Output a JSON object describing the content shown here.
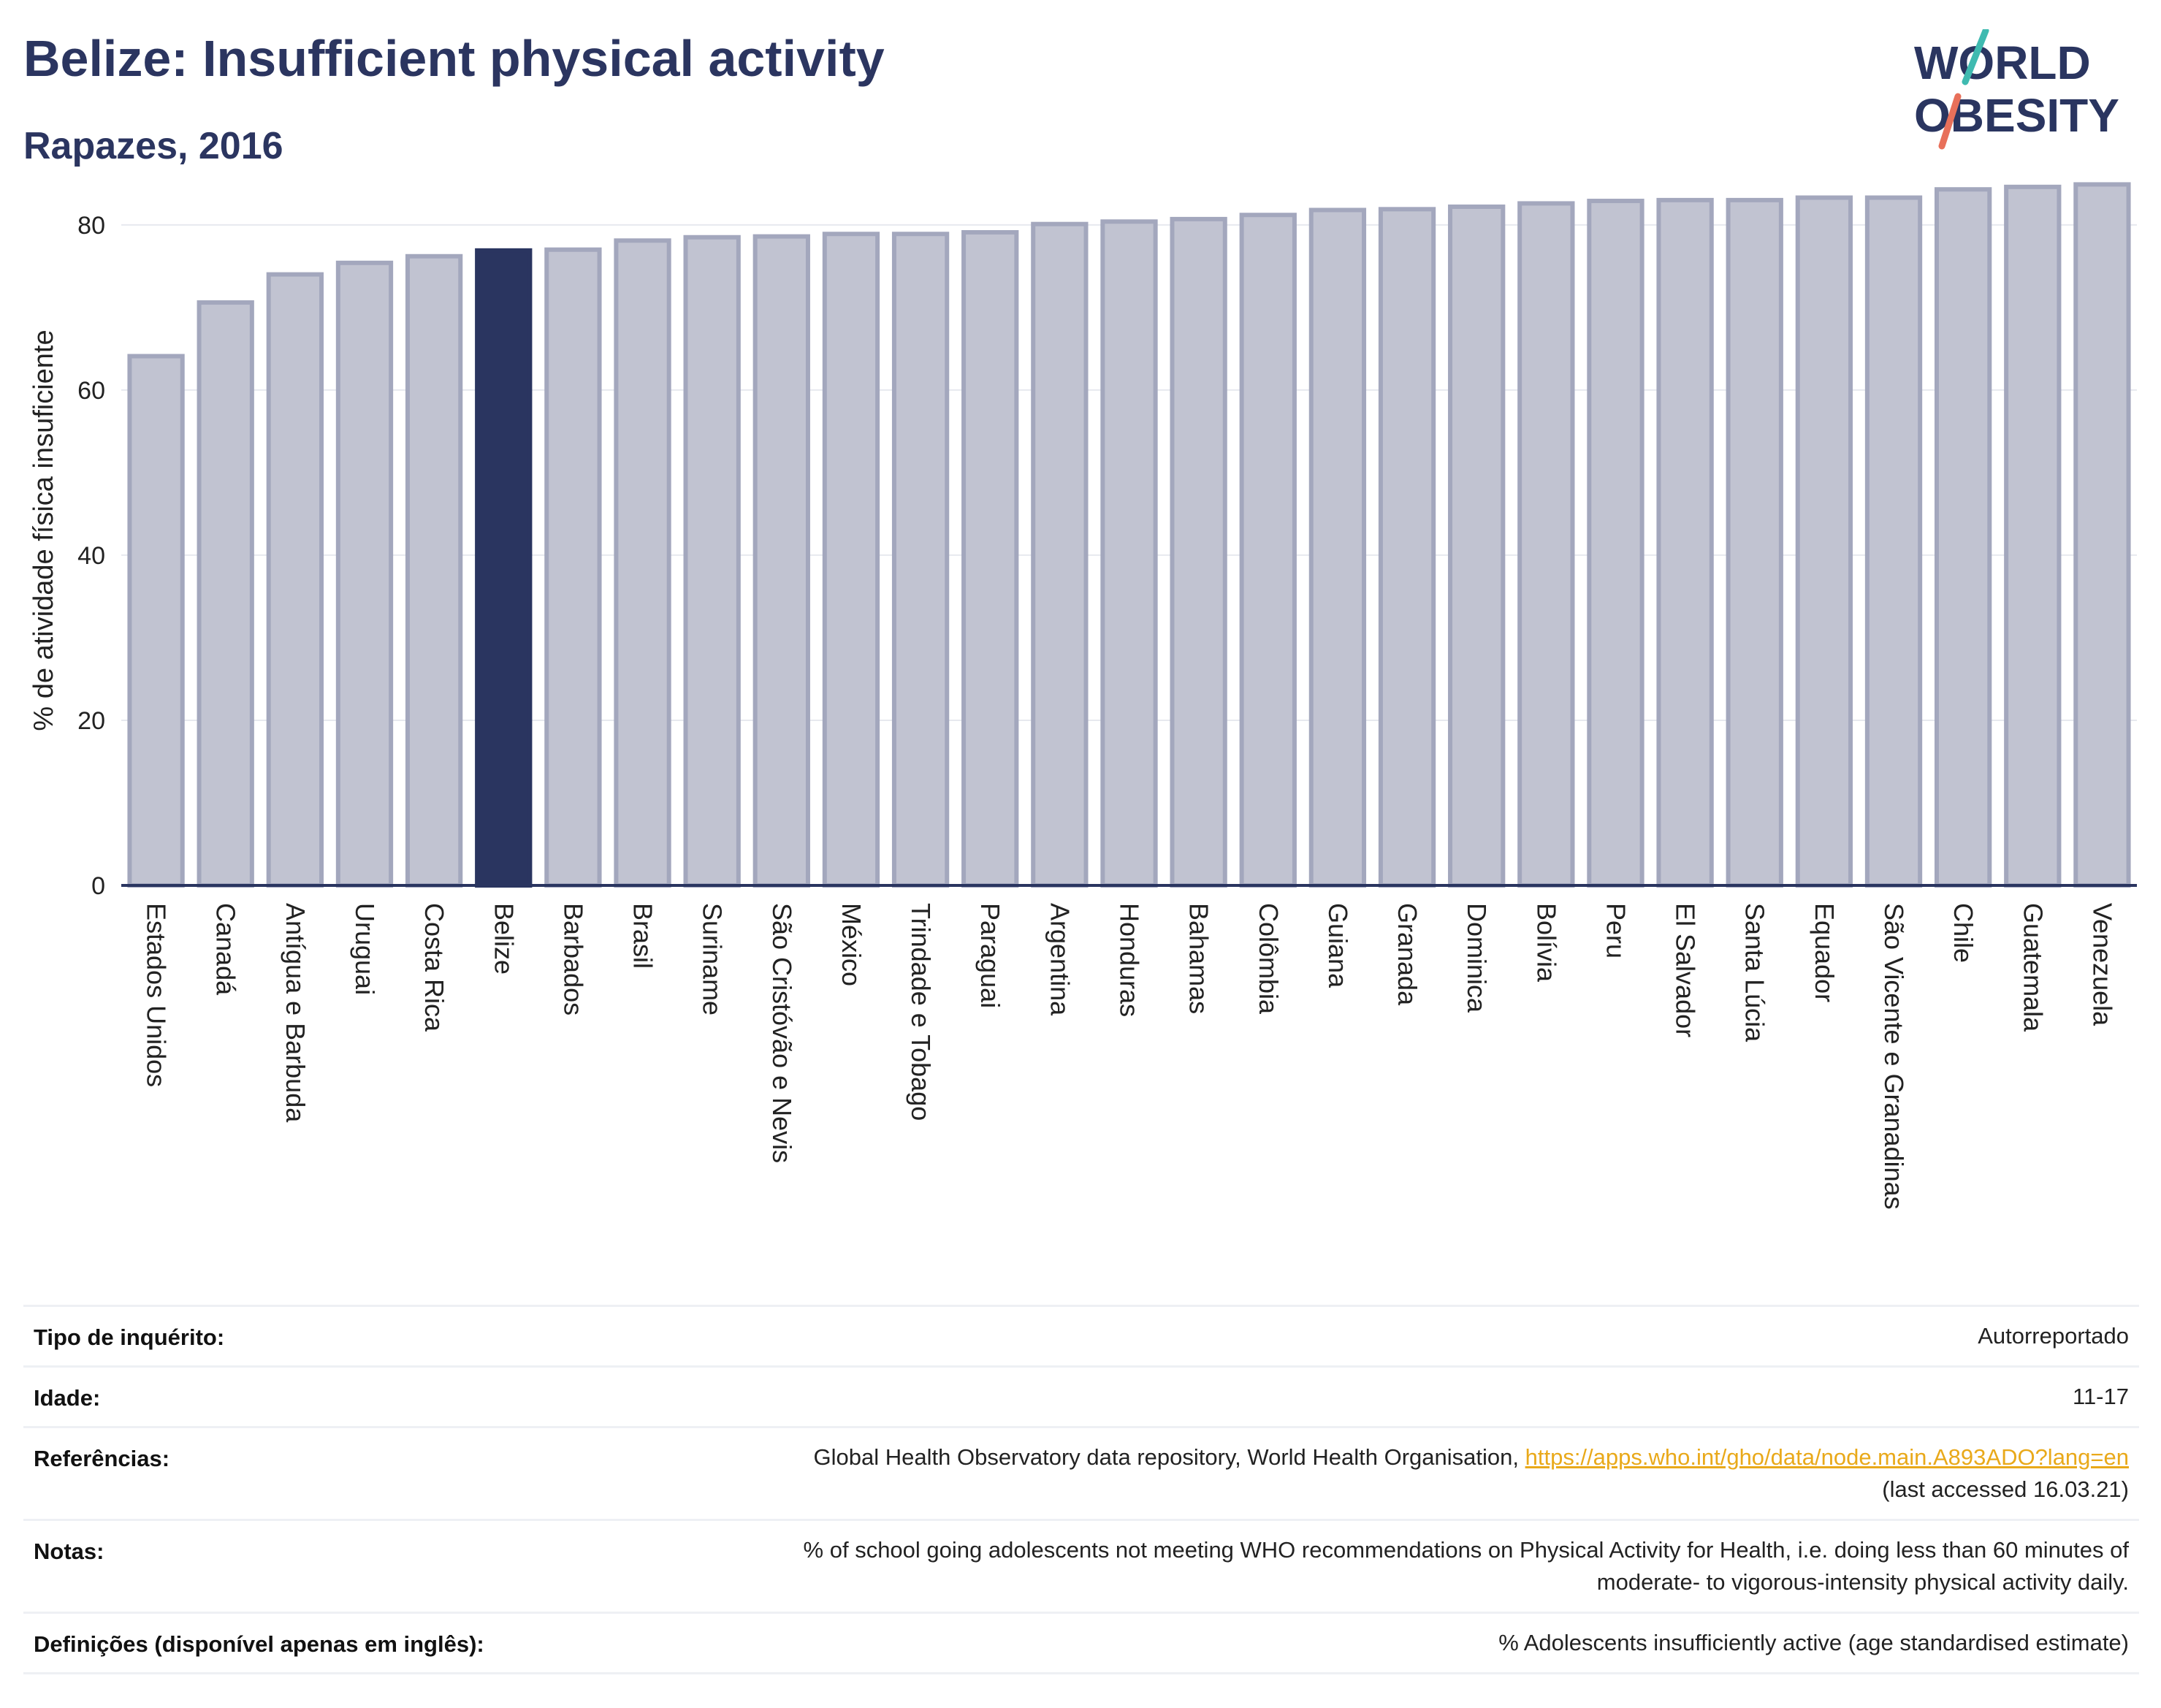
{
  "header": {
    "title": "Belize: Insufficient physical activity",
    "subtitle": "Rapazes, 2016",
    "logo_line1": "WORLD",
    "logo_line2": "OBESITY"
  },
  "colors": {
    "highlight": "#2a3560",
    "bar": "#c1c3d1",
    "bar_edge": "#a3a7bd",
    "text": "#2a3560",
    "link": "#e9a91a",
    "logo_slash_top": "#3fbab0",
    "logo_slash_bottom": "#e8705a"
  },
  "chart_data": {
    "type": "bar",
    "categories": [
      "Estados Unidos",
      "Canadá",
      "Antígua e Barbuda",
      "Uruguai",
      "Costa Rica",
      "Belize",
      "Barbados",
      "Brasil",
      "Suriname",
      "São Cristóvão e Nevis",
      "México",
      "Trindade e Tobago",
      "Paraguai",
      "Argentina",
      "Honduras",
      "Bahamas",
      "Colômbia",
      "Guiana",
      "Granada",
      "Dominica",
      "Bolívia",
      "Peru",
      "El Salvador",
      "Santa Lúcia",
      "Equador",
      "São Vicente e Granadinas",
      "Chile",
      "Guatemala",
      "Venezuela"
    ],
    "values": [
      64.1,
      70.6,
      74.0,
      75.4,
      76.2,
      76.9,
      77.0,
      78.1,
      78.5,
      78.6,
      78.9,
      78.9,
      79.1,
      80.1,
      80.4,
      80.7,
      81.2,
      81.8,
      81.9,
      82.2,
      82.6,
      82.9,
      83.0,
      83.0,
      83.3,
      83.3,
      84.3,
      84.6,
      84.9
    ],
    "highlight": "Belize",
    "xlabel": "",
    "ylabel": "% de atividade física insuficiente",
    "ylim": [
      0,
      86
    ],
    "yticks": [
      0,
      20,
      40,
      60,
      80
    ],
    "grid": true,
    "legend": false
  },
  "meta": {
    "rows": [
      {
        "label": "Tipo de inquérito:",
        "value": "Autorreportado"
      },
      {
        "label": "Idade:",
        "value": "11-17"
      },
      {
        "label": "Referências:",
        "value_prefix": "Global Health Observatory data repository, World Health Organisation, ",
        "link": "https://apps.who.int/gho/data/node.main.A893ADO?lang=en",
        "value_suffix": "(last accessed 16.03.21)"
      },
      {
        "label": "Notas:",
        "value": "% of school going adolescents not meeting WHO recommendations on Physical Activity for Health, i.e. doing less than 60 minutes of",
        "value2": "moderate- to vigorous-intensity physical activity daily."
      },
      {
        "label": "Definições (disponível apenas em inglês):",
        "value": "% Adolescents insufficiently active (age standardised estimate)"
      }
    ]
  }
}
